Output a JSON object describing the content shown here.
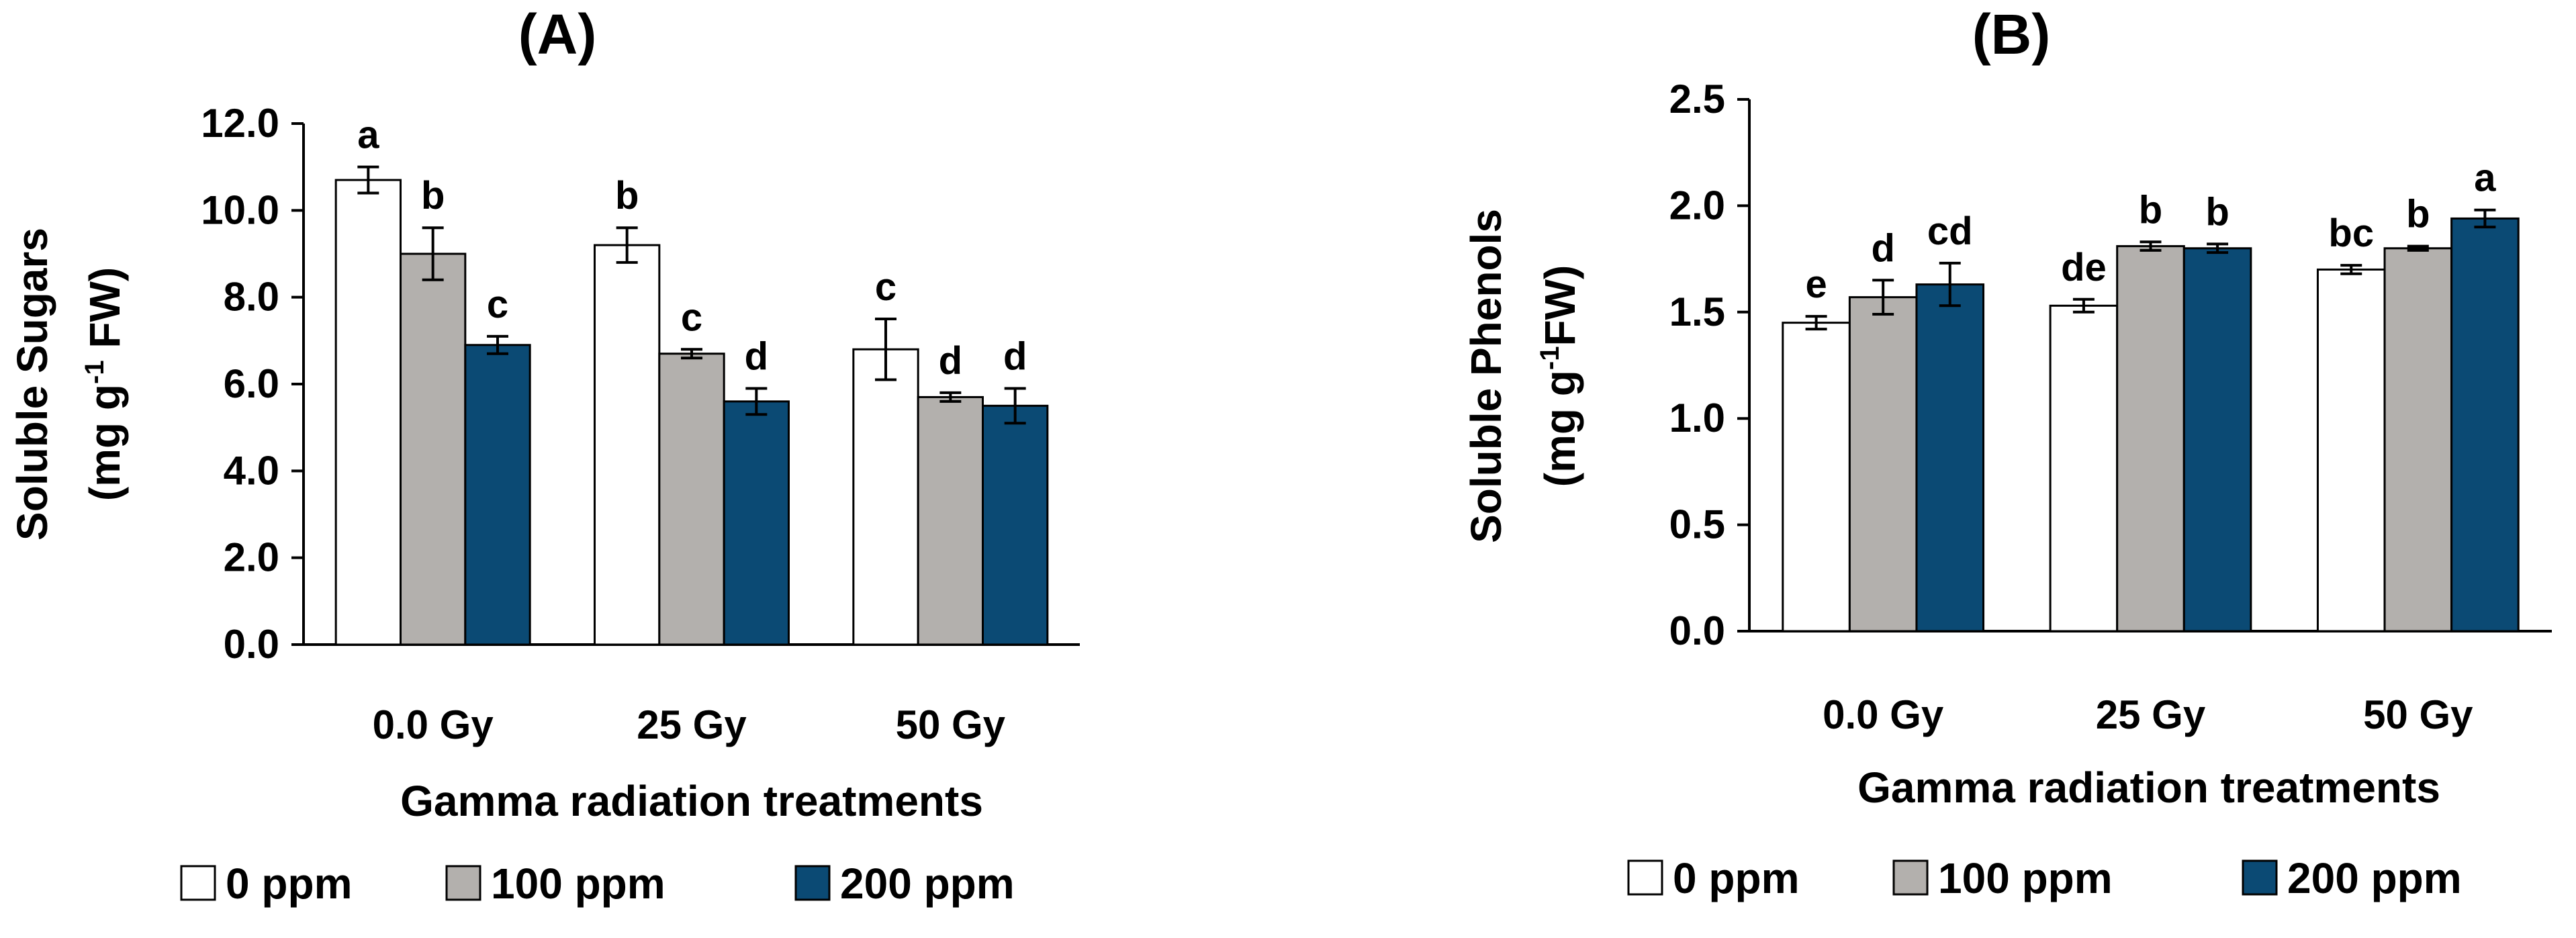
{
  "colors": {
    "0 ppm": "#ffffff",
    "100 ppm": "#b3b0ad",
    "200 ppm": "#0b4a74",
    "stroke": "#000000"
  },
  "chart_data": [
    {
      "type": "bar",
      "panel": "A",
      "title": "(A)",
      "xlabel": "Gamma radiation treatments",
      "ylabel": "Soluble Sugars",
      "ylabel_unit_prefix": "(mg g",
      "ylabel_unit_sup": "-1",
      "ylabel_unit_suffix": " FW)",
      "ylim": [
        0,
        12
      ],
      "yticks": [
        "0.0",
        "2.0",
        "4.0",
        "6.0",
        "8.0",
        "10.0",
        "12.0"
      ],
      "categories": [
        "0.0 Gy",
        "25 Gy",
        "50 Gy"
      ],
      "legend": [
        "0 ppm",
        "100 ppm",
        "200 ppm"
      ],
      "series": [
        {
          "name": "0 ppm",
          "values": [
            10.7,
            9.2,
            6.8
          ],
          "errors": [
            0.3,
            0.4,
            0.7
          ],
          "letters": [
            "a",
            "b",
            "c"
          ]
        },
        {
          "name": "100 ppm",
          "values": [
            9.0,
            6.7,
            5.7
          ],
          "errors": [
            0.6,
            0.1,
            0.1
          ],
          "letters": [
            "b",
            "c",
            "d"
          ]
        },
        {
          "name": "200 ppm",
          "values": [
            6.9,
            5.6,
            5.5
          ],
          "errors": [
            0.2,
            0.3,
            0.4
          ],
          "letters": [
            "c",
            "d",
            "d"
          ]
        }
      ]
    },
    {
      "type": "bar",
      "panel": "B",
      "title": "(B)",
      "xlabel": "Gamma radiation treatments",
      "ylabel": "Soluble Phenols",
      "ylabel_unit_prefix": "(mg g",
      "ylabel_unit_sup": "-1",
      "ylabel_unit_suffix": "FW)",
      "ylim": [
        0,
        2.5
      ],
      "yticks": [
        "0.0",
        "0.5",
        "1.0",
        "1.5",
        "2.0",
        "2.5"
      ],
      "categories": [
        "0.0 Gy",
        "25 Gy",
        "50 Gy"
      ],
      "legend": [
        "0 ppm",
        "100 ppm",
        "200 ppm"
      ],
      "series": [
        {
          "name": "0 ppm",
          "values": [
            1.45,
            1.53,
            1.7
          ],
          "errors": [
            0.03,
            0.03,
            0.02
          ],
          "letters": [
            "e",
            "de",
            "bc"
          ]
        },
        {
          "name": "100 ppm",
          "values": [
            1.57,
            1.81,
            1.8
          ],
          "errors": [
            0.08,
            0.02,
            0.01
          ],
          "letters": [
            "d",
            "b",
            "b"
          ]
        },
        {
          "name": "200 ppm",
          "values": [
            1.63,
            1.8,
            1.94
          ],
          "errors": [
            0.1,
            0.02,
            0.04
          ],
          "letters": [
            "cd",
            "b",
            "a"
          ]
        }
      ]
    }
  ]
}
